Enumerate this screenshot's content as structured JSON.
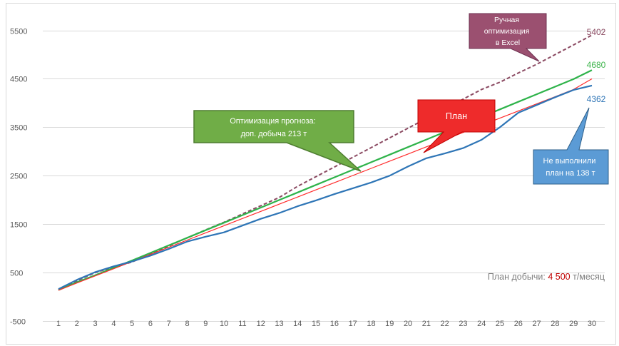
{
  "chart_data": {
    "type": "line",
    "title": "",
    "xlabel": "",
    "ylabel": "",
    "x": [
      1,
      2,
      3,
      4,
      5,
      6,
      7,
      8,
      9,
      10,
      11,
      12,
      13,
      14,
      15,
      16,
      17,
      18,
      19,
      20,
      21,
      22,
      23,
      24,
      25,
      26,
      27,
      28,
      29,
      30
    ],
    "ylim": [
      -500,
      5700
    ],
    "yticks": [
      -500,
      500,
      1500,
      2500,
      3500,
      4500,
      5500
    ],
    "grid": true,
    "legend": "none",
    "series": [
      {
        "key": "manual",
        "color": "#8b4a62",
        "dash": true,
        "values": [
          150,
          330,
          500,
          610,
          720,
          880,
          1050,
          1220,
          1380,
          1540,
          1710,
          1880,
          2050,
          2280,
          2480,
          2680,
          2880,
          3080,
          3280,
          3480,
          3680,
          3880,
          4080,
          4280,
          4430,
          4620,
          4800,
          5000,
          5200,
          5402
        ]
      },
      {
        "key": "optimized",
        "color": "#2eb34a",
        "dash": false,
        "values": [
          140,
          300,
          445,
          600,
          750,
          906,
          1062,
          1218,
          1374,
          1530,
          1686,
          1842,
          1998,
          2154,
          2310,
          2466,
          2622,
          2778,
          2934,
          3090,
          3246,
          3402,
          3558,
          3714,
          3870,
          4026,
          4182,
          4338,
          4494,
          4680
        ]
      },
      {
        "key": "plan",
        "color": "#ff2b2b",
        "dash": false,
        "values": [
          135,
          285,
          432,
          580,
          728,
          876,
          1024,
          1172,
          1320,
          1468,
          1616,
          1764,
          1912,
          2060,
          2208,
          2356,
          2504,
          2652,
          2800,
          2948,
          3096,
          3244,
          3392,
          3540,
          3688,
          3836,
          3984,
          4132,
          4280,
          4500
        ]
      },
      {
        "key": "actual",
        "color": "#2e75b6",
        "dash": false,
        "values": [
          160,
          350,
          510,
          630,
          730,
          850,
          990,
          1140,
          1240,
          1330,
          1470,
          1610,
          1730,
          1870,
          1990,
          2120,
          2240,
          2360,
          2500,
          2690,
          2860,
          2960,
          3070,
          3240,
          3500,
          3800,
          3960,
          4120,
          4270,
          4362
        ]
      }
    ],
    "end_labels": [
      {
        "text": "5402",
        "color": "#8b4a62"
      },
      {
        "text": "4680",
        "color": "#3cb44b"
      },
      {
        "text": "4362",
        "color": "#2e75b6"
      }
    ],
    "annotations": [
      {
        "key": "opt",
        "lines": [
          "Оптимизация прогноза:",
          "доп. добыча 213 т"
        ],
        "color": "#70ad47"
      },
      {
        "key": "plan",
        "lines": [
          "План"
        ],
        "color": "#ee2b2b"
      },
      {
        "key": "manual",
        "lines": [
          "Ручная",
          "оптимизация",
          "в Excel"
        ],
        "color": "#9b5070"
      },
      {
        "key": "miss",
        "lines": [
          "Не выполнили",
          "план на 138 т"
        ],
        "color": "#5b9bd5"
      }
    ],
    "note": {
      "prefix": "План добычи: ",
      "value": "4 500",
      "suffix": " т/месяц",
      "value_color": "#c00000"
    }
  }
}
